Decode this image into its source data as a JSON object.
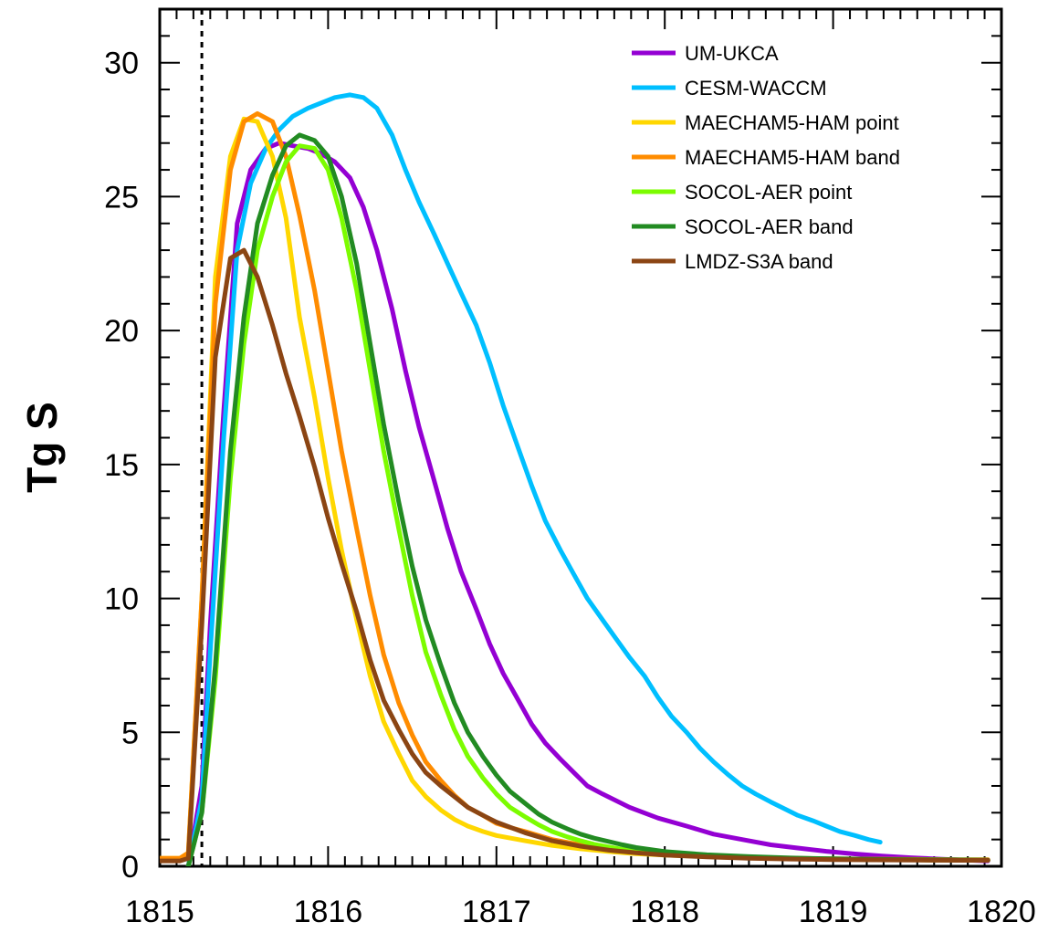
{
  "chart_data": {
    "type": "line",
    "title": "",
    "xlabel": "",
    "ylabel": "Tg S",
    "xlim": [
      1815,
      1820
    ],
    "ylim": [
      0,
      32
    ],
    "xticks": [
      1815,
      1816,
      1817,
      1818,
      1819,
      1820
    ],
    "yticks": [
      0,
      5,
      10,
      15,
      20,
      25,
      30
    ],
    "xtick_labels": [
      "1815",
      "1816",
      "1817",
      "1818",
      "1819",
      "1820"
    ],
    "ytick_labels": [
      "0",
      "5",
      "10",
      "15",
      "20",
      "25",
      "30"
    ],
    "grid": false,
    "legend_position": "top-right",
    "eruption_marker_x": 1815.25,
    "series": [
      {
        "name": "UM-UKCA",
        "color": "#9400D3",
        "x": [
          1815.17,
          1815.25,
          1815.3,
          1815.38,
          1815.46,
          1815.54,
          1815.63,
          1815.71,
          1815.79,
          1815.88,
          1815.96,
          1816.04,
          1816.13,
          1816.21,
          1816.29,
          1816.38,
          1816.46,
          1816.54,
          1816.63,
          1816.71,
          1816.79,
          1816.88,
          1816.96,
          1817.04,
          1817.13,
          1817.21,
          1817.29,
          1817.38,
          1817.46,
          1817.54,
          1817.63,
          1817.79,
          1817.96,
          1818.13,
          1818.29,
          1818.46,
          1818.63,
          1818.79,
          1818.96,
          1819.13,
          1819.29,
          1819.46,
          1819.63,
          1819.79,
          1819.92
        ],
        "y": [
          0.0,
          3.0,
          9.0,
          17.0,
          24.0,
          26.0,
          26.8,
          27.0,
          26.9,
          26.8,
          26.6,
          26.3,
          25.7,
          24.6,
          23.0,
          20.8,
          18.5,
          16.4,
          14.4,
          12.6,
          11.0,
          9.6,
          8.3,
          7.2,
          6.2,
          5.3,
          4.6,
          4.0,
          3.5,
          3.0,
          2.7,
          2.2,
          1.8,
          1.5,
          1.2,
          1.0,
          0.8,
          0.68,
          0.56,
          0.46,
          0.38,
          0.32,
          0.27,
          0.23,
          0.2
        ]
      },
      {
        "name": "CESM-WACCM",
        "color": "#00BFFF",
        "x": [
          1815.17,
          1815.25,
          1815.3,
          1815.38,
          1815.46,
          1815.54,
          1815.63,
          1815.71,
          1815.79,
          1815.88,
          1815.96,
          1816.04,
          1816.13,
          1816.21,
          1816.29,
          1816.38,
          1816.46,
          1816.54,
          1816.63,
          1816.71,
          1816.79,
          1816.88,
          1816.96,
          1817.04,
          1817.13,
          1817.21,
          1817.29,
          1817.38,
          1817.46,
          1817.54,
          1817.63,
          1817.71,
          1817.79,
          1817.88,
          1817.96,
          1818.04,
          1818.13,
          1818.21,
          1818.29,
          1818.38,
          1818.46,
          1818.54,
          1818.63,
          1818.71,
          1818.79,
          1818.88,
          1818.96,
          1819.04,
          1819.13,
          1819.21,
          1819.28
        ],
        "y": [
          0.0,
          2.5,
          8.0,
          16.0,
          23.0,
          25.5,
          26.8,
          27.5,
          28.0,
          28.3,
          28.5,
          28.7,
          28.8,
          28.7,
          28.3,
          27.3,
          26.0,
          24.8,
          23.6,
          22.5,
          21.4,
          20.2,
          18.8,
          17.2,
          15.6,
          14.2,
          12.9,
          11.8,
          10.9,
          10.0,
          9.2,
          8.5,
          7.8,
          7.1,
          6.3,
          5.6,
          5.0,
          4.4,
          3.9,
          3.4,
          3.0,
          2.7,
          2.4,
          2.15,
          1.9,
          1.7,
          1.5,
          1.3,
          1.15,
          1.0,
          0.9
        ]
      },
      {
        "name": "MAECHAM5-HAM point",
        "color": "#FFD700",
        "x": [
          1815.0,
          1815.12,
          1815.17,
          1815.25,
          1815.33,
          1815.42,
          1815.5,
          1815.58,
          1815.67,
          1815.75,
          1815.83,
          1815.92,
          1816.0,
          1816.08,
          1816.17,
          1816.25,
          1816.33,
          1816.42,
          1816.5,
          1816.58,
          1816.67,
          1816.75,
          1816.83,
          1816.92,
          1817.0,
          1817.17,
          1817.33,
          1817.5,
          1817.67,
          1817.83,
          1818.0,
          1818.25,
          1818.5,
          1818.75,
          1819.0,
          1819.25,
          1819.5,
          1819.75,
          1819.92
        ],
        "y": [
          0.3,
          0.3,
          0.5,
          10.0,
          22.0,
          26.5,
          27.9,
          27.8,
          26.5,
          24.2,
          20.5,
          17.5,
          14.5,
          11.8,
          9.2,
          7.1,
          5.4,
          4.2,
          3.2,
          2.6,
          2.1,
          1.75,
          1.5,
          1.3,
          1.15,
          0.95,
          0.78,
          0.65,
          0.55,
          0.47,
          0.42,
          0.36,
          0.32,
          0.29,
          0.27,
          0.25,
          0.24,
          0.23,
          0.22
        ]
      },
      {
        "name": "MAECHAM5-HAM band",
        "color": "#FF8C00",
        "x": [
          1815.0,
          1815.12,
          1815.17,
          1815.25,
          1815.33,
          1815.42,
          1815.5,
          1815.58,
          1815.67,
          1815.75,
          1815.83,
          1815.92,
          1816.0,
          1816.08,
          1816.17,
          1816.25,
          1816.33,
          1816.42,
          1816.5,
          1816.58,
          1816.67,
          1816.75,
          1816.83,
          1816.92,
          1817.0,
          1817.08,
          1817.17,
          1817.25,
          1817.33,
          1817.5,
          1817.67,
          1817.83,
          1818.0,
          1818.25,
          1818.5,
          1818.75,
          1819.0,
          1819.25,
          1819.5,
          1819.75,
          1819.92
        ],
        "y": [
          0.3,
          0.3,
          0.5,
          10.0,
          21.0,
          26.0,
          27.8,
          28.1,
          27.8,
          26.5,
          24.3,
          21.5,
          18.5,
          15.5,
          12.6,
          10.1,
          7.9,
          6.1,
          4.9,
          3.9,
          3.2,
          2.65,
          2.2,
          1.9,
          1.6,
          1.45,
          1.3,
          1.15,
          1.0,
          0.8,
          0.65,
          0.55,
          0.46,
          0.38,
          0.33,
          0.3,
          0.28,
          0.27,
          0.26,
          0.25,
          0.25
        ]
      },
      {
        "name": "SOCOL-AER point",
        "color": "#7CFC00",
        "x": [
          1815.17,
          1815.25,
          1815.33,
          1815.42,
          1815.5,
          1815.58,
          1815.67,
          1815.75,
          1815.83,
          1815.92,
          1816.0,
          1816.08,
          1816.17,
          1816.25,
          1816.33,
          1816.42,
          1816.5,
          1816.58,
          1816.67,
          1816.75,
          1816.83,
          1816.92,
          1817.0,
          1817.08,
          1817.17,
          1817.25,
          1817.33,
          1817.42,
          1817.5,
          1817.58,
          1817.67,
          1817.75,
          1817.83,
          1818.0,
          1818.25,
          1818.5,
          1818.75,
          1819.0,
          1819.25,
          1819.5,
          1819.75,
          1819.92
        ],
        "y": [
          0.0,
          2.0,
          7.0,
          14.5,
          19.5,
          23.0,
          25.0,
          26.3,
          26.9,
          26.8,
          26.0,
          24.2,
          21.5,
          18.5,
          15.5,
          12.6,
          10.1,
          8.0,
          6.4,
          5.1,
          4.1,
          3.3,
          2.7,
          2.2,
          1.85,
          1.55,
          1.3,
          1.1,
          0.95,
          0.82,
          0.72,
          0.63,
          0.56,
          0.45,
          0.37,
          0.32,
          0.29,
          0.27,
          0.25,
          0.24,
          0.23,
          0.22
        ]
      },
      {
        "name": "SOCOL-AER band",
        "color": "#228B22",
        "x": [
          1815.17,
          1815.25,
          1815.33,
          1815.42,
          1815.5,
          1815.58,
          1815.67,
          1815.75,
          1815.83,
          1815.92,
          1816.0,
          1816.08,
          1816.17,
          1816.25,
          1816.33,
          1816.42,
          1816.5,
          1816.58,
          1816.67,
          1816.75,
          1816.83,
          1816.92,
          1817.0,
          1817.08,
          1817.17,
          1817.25,
          1817.33,
          1817.42,
          1817.5,
          1817.58,
          1817.67,
          1817.75,
          1817.83,
          1818.0,
          1818.25,
          1818.5,
          1818.75,
          1819.0,
          1819.25,
          1819.5,
          1819.75,
          1819.92
        ],
        "y": [
          0.0,
          2.0,
          7.5,
          15.5,
          20.5,
          24.0,
          25.8,
          26.9,
          27.3,
          27.1,
          26.5,
          25.0,
          22.5,
          19.5,
          16.5,
          13.6,
          11.2,
          9.2,
          7.5,
          6.1,
          5.0,
          4.1,
          3.4,
          2.8,
          2.35,
          1.95,
          1.65,
          1.4,
          1.2,
          1.05,
          0.92,
          0.8,
          0.7,
          0.55,
          0.43,
          0.36,
          0.31,
          0.28,
          0.26,
          0.25,
          0.24,
          0.23
        ]
      },
      {
        "name": "LMDZ-S3A band",
        "color": "#8B4513",
        "x": [
          1815.0,
          1815.12,
          1815.17,
          1815.25,
          1815.33,
          1815.42,
          1815.5,
          1815.58,
          1815.67,
          1815.75,
          1815.83,
          1815.92,
          1816.0,
          1816.08,
          1816.17,
          1816.25,
          1816.33,
          1816.42,
          1816.5,
          1816.58,
          1816.67,
          1816.75,
          1816.83,
          1816.92,
          1817.0,
          1817.17,
          1817.33,
          1817.5,
          1817.67,
          1817.83,
          1818.0,
          1818.25,
          1818.5,
          1818.75,
          1819.0,
          1819.25,
          1819.5,
          1819.75,
          1819.92
        ],
        "y": [
          0.2,
          0.2,
          0.3,
          9.0,
          19.0,
          22.7,
          23.0,
          22.0,
          20.2,
          18.4,
          16.8,
          14.9,
          13.0,
          11.3,
          9.5,
          7.7,
          6.2,
          5.1,
          4.2,
          3.5,
          3.0,
          2.6,
          2.2,
          1.9,
          1.65,
          1.25,
          0.95,
          0.75,
          0.6,
          0.5,
          0.42,
          0.35,
          0.3,
          0.27,
          0.25,
          0.24,
          0.23,
          0.22,
          0.22
        ]
      }
    ]
  }
}
